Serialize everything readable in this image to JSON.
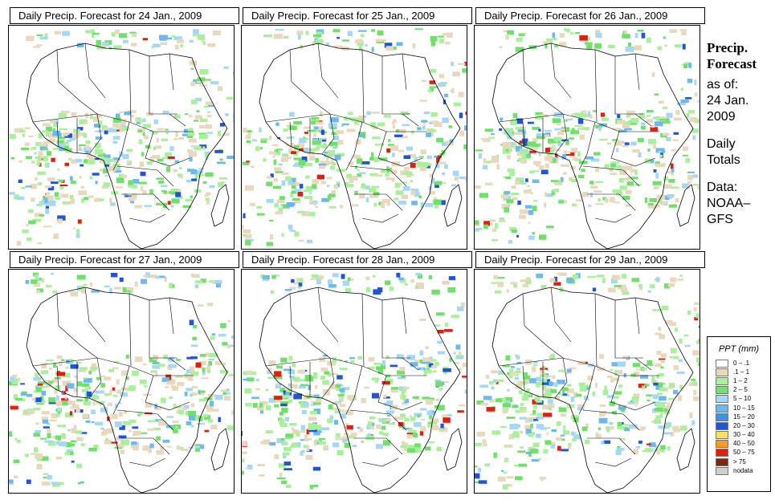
{
  "panels": [
    {
      "title": "Daily Precip. Forecast for  24 Jan., 2009",
      "variant": 0
    },
    {
      "title": "Daily Precip. Forecast for  25 Jan., 2009",
      "variant": 1
    },
    {
      "title": "Daily Precip. Forecast for  26 Jan., 2009",
      "variant": 2
    },
    {
      "title": "Daily Precip. Forecast for  27 Jan., 2009",
      "variant": 3
    },
    {
      "title": "Daily Precip. Forecast for  28 Jan., 2009",
      "variant": 4
    },
    {
      "title": "Daily Precip. Forecast for  29 Jan., 2009",
      "variant": 5
    }
  ],
  "side": {
    "heading_line1": "Precip.",
    "heading_line2": "Forecast",
    "asof_line1": "as of:",
    "asof_line2": "24 Jan.",
    "asof_line3": "2009",
    "totals_line1": "Daily",
    "totals_line2": "Totals",
    "data_line1": "Data:",
    "data_line2": "NOAA–",
    "data_line3": "GFS"
  },
  "legend": {
    "title": "PPT (mm)",
    "items": [
      {
        "label": "0 – .1",
        "color": "#ffffff"
      },
      {
        "label": ".1 – 1",
        "color": "#e8d9bd"
      },
      {
        "label": "1 – 2",
        "color": "#a8f09a"
      },
      {
        "label": "2 – 5",
        "color": "#6fe06a"
      },
      {
        "label": "5 – 10",
        "color": "#a6d8f5"
      },
      {
        "label": "10 – 15",
        "color": "#6cb9ef"
      },
      {
        "label": "15 – 20",
        "color": "#3c93e6"
      },
      {
        "label": "20 – 30",
        "color": "#2055d8"
      },
      {
        "label": "30 – 40",
        "color": "#ffe05a"
      },
      {
        "label": "40 – 50",
        "color": "#ff9a1f"
      },
      {
        "label": "50 – 75",
        "color": "#e0200f"
      },
      {
        "label": "> 75",
        "color": "#7a2a10"
      },
      {
        "label": "nodata",
        "color": "#cfcfcf"
      }
    ]
  }
}
